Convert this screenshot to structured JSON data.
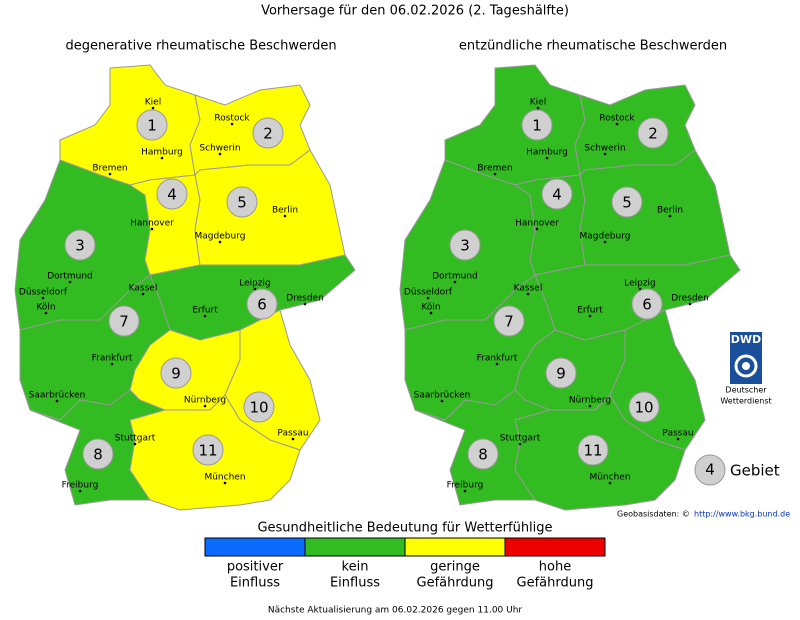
{
  "title": "Vorhersage für den 06.02.2026 (2. Tageshälfte)",
  "maps": [
    {
      "title": "degenerative rheumatische Beschwerden",
      "regions": [
        {
          "id": 1,
          "color": "#ffff00"
        },
        {
          "id": 2,
          "color": "#ffff00"
        },
        {
          "id": 3,
          "color": "#33bb22"
        },
        {
          "id": 4,
          "color": "#ffff00"
        },
        {
          "id": 5,
          "color": "#ffff00"
        },
        {
          "id": 6,
          "color": "#33bb22"
        },
        {
          "id": 7,
          "color": "#33bb22"
        },
        {
          "id": 8,
          "color": "#33bb22"
        },
        {
          "id": 9,
          "color": "#ffff00"
        },
        {
          "id": 10,
          "color": "#ffff00"
        },
        {
          "id": 11,
          "color": "#ffff00"
        }
      ]
    },
    {
      "title": "entzündliche rheumatische Beschwerden",
      "regions": [
        {
          "id": 1,
          "color": "#33bb22"
        },
        {
          "id": 2,
          "color": "#33bb22"
        },
        {
          "id": 3,
          "color": "#33bb22"
        },
        {
          "id": 4,
          "color": "#33bb22"
        },
        {
          "id": 5,
          "color": "#33bb22"
        },
        {
          "id": 6,
          "color": "#33bb22"
        },
        {
          "id": 7,
          "color": "#33bb22"
        },
        {
          "id": 8,
          "color": "#33bb22"
        },
        {
          "id": 9,
          "color": "#33bb22"
        },
        {
          "id": 10,
          "color": "#33bb22"
        },
        {
          "id": 11,
          "color": "#33bb22"
        }
      ]
    }
  ],
  "cities": [
    "Kiel",
    "Rostock",
    "Hamburg",
    "Schwerin",
    "Bremen",
    "Hannover",
    "Berlin",
    "Magdeburg",
    "Dortmund",
    "Düsseldorf",
    "Köln",
    "Kassel",
    "Leipzig",
    "Dresden",
    "Erfurt",
    "Frankfurt",
    "Saarbrücken",
    "Nürnberg",
    "Passau",
    "Stuttgart",
    "München",
    "Freiburg"
  ],
  "logo": {
    "abbr": "DWD",
    "name": [
      "Deutscher",
      "Wetterdienst"
    ]
  },
  "key": {
    "number": 4,
    "label": "Gebiet"
  },
  "source": {
    "label": "Geobasisdaten: ©",
    "url": "http://www.bkg.bund.de"
  },
  "legend": {
    "title": "Gesundheitliche Bedeutung für Wetterfühlige",
    "items": [
      {
        "color": "#0a6cff",
        "label": [
          "positiver",
          "Einfluss"
        ]
      },
      {
        "color": "#33bb22",
        "label": [
          "kein",
          "Einfluss"
        ]
      },
      {
        "color": "#ffff00",
        "label": [
          "geringe",
          "Gefährdung"
        ]
      },
      {
        "color": "#ee0000",
        "label": [
          "hohe",
          "Gefährdung"
        ]
      }
    ]
  },
  "footer": "Nächste Aktualisierung am 06.02.2026 gegen 11.00 Uhr"
}
